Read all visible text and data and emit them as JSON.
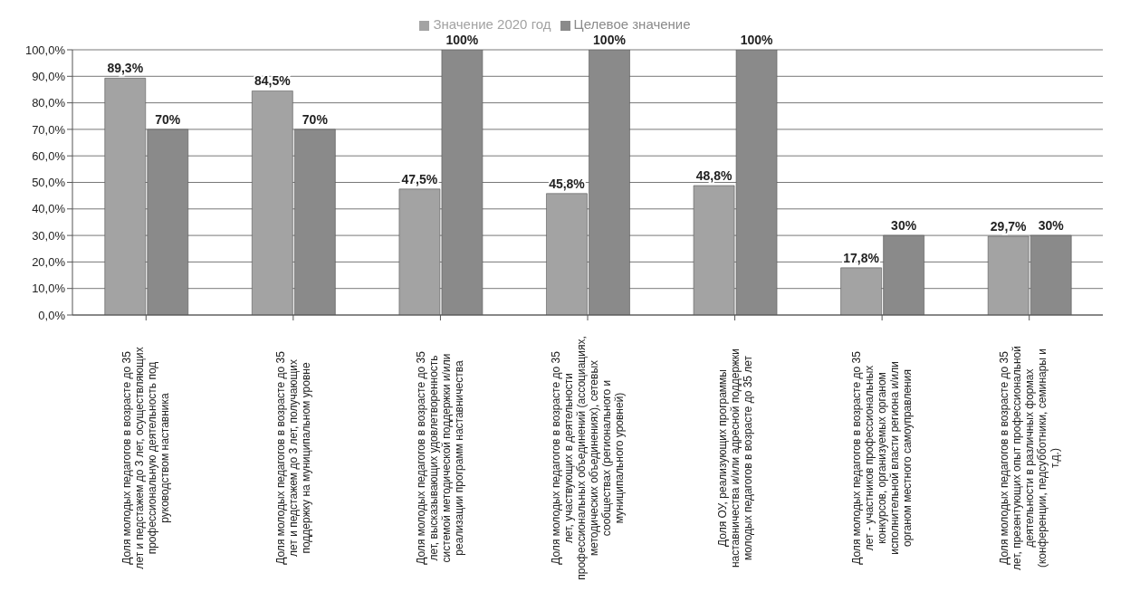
{
  "chart_data": {
    "type": "bar",
    "categories": [
      "Доля молодых педагогов в возрасте до 35 лет и педстажем до 3 лет, осуществляющих профессиональную деятельность под руководством наставника",
      "Доля молодых педагогов в возрасте до 35 лет и педстажем до 3 лет, получающих поддержку на муниципальном уровне",
      "Доля молодых педагогов в возрасте до 35 лет, высказывающих удовлетворенность системой методической поддержки и/или реализации программ наставничества",
      "Доля молодых педагогов в возрасте до 35 лет, участвующих в деятельности профессиональных объединений (ассоциациях, методических объединениях), сетевых сообществах (регионального и муниципального уровней)",
      "Доля ОУ, реализующих программы наставничества и/или адресной поддержки молодых педагогов в возрасте до 35 лет",
      "Доля молодых педагогов в возрасте до 35 лет - участников профессиональных конкурсов, организуемых органом исполнительной власти региона и/или органом местного самоуправления",
      "Доля молодых педагогов в возрасте до 35 лет, презентующих опыт профессиональной деятельности в различных формах (конференции, педсубботники, семинары и т.д.)"
    ],
    "series": [
      {
        "name": "Значение 2020 год",
        "color": "#a3a3a3",
        "values": [
          89.3,
          84.5,
          47.5,
          45.8,
          48.8,
          17.8,
          29.7
        ],
        "value_labels": [
          "89,3%",
          "84,5%",
          "47,5%",
          "45,8%",
          "48,8%",
          "17,8%",
          "29,7%"
        ]
      },
      {
        "name": "Целевое значение",
        "color": "#8a8a8a",
        "values": [
          70,
          70,
          100,
          100,
          100,
          30,
          30
        ],
        "value_labels": [
          "70%",
          "70%",
          "100%",
          "100%",
          "100%",
          "30%",
          "30%"
        ]
      }
    ],
    "ylim": [
      0,
      100
    ],
    "yticks": [
      {
        "value": 0,
        "label": "0,0%"
      },
      {
        "value": 10,
        "label": "10,0%"
      },
      {
        "value": 20,
        "label": "20,0%"
      },
      {
        "value": 30,
        "label": "30,0%"
      },
      {
        "value": 40,
        "label": "40,0%"
      },
      {
        "value": 50,
        "label": "50,0%"
      },
      {
        "value": 60,
        "label": "60,0%"
      },
      {
        "value": 70,
        "label": "70,0%"
      },
      {
        "value": 80,
        "label": "80,0%"
      },
      {
        "value": 90,
        "label": "90,0%"
      },
      {
        "value": 100,
        "label": "100,0%"
      }
    ],
    "grid": "y",
    "legend": "top"
  }
}
